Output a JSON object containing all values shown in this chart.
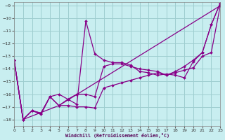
{
  "background_color": "#c8eef0",
  "grid_color": "#9ecdd0",
  "line_color": "#880088",
  "xlim": [
    0,
    23
  ],
  "ylim": [
    -18.5,
    -8.7
  ],
  "yticks": [
    -18,
    -17,
    -16,
    -15,
    -14,
    -13,
    -12,
    -11,
    -10,
    -9
  ],
  "xticks": [
    0,
    1,
    2,
    3,
    4,
    5,
    6,
    7,
    8,
    9,
    10,
    11,
    12,
    13,
    14,
    15,
    16,
    17,
    18,
    19,
    20,
    21,
    22,
    23
  ],
  "xlabel": "Windchill (Refroidissement éolien,°C)",
  "series": [
    {
      "x": [
        0,
        1,
        2,
        3,
        4,
        5,
        6,
        7,
        8,
        9,
        10,
        11,
        12,
        13,
        14,
        15,
        16,
        17,
        18,
        19,
        20,
        21,
        22,
        23
      ],
      "y": [
        -13.3,
        -18.0,
        -17.3,
        -17.5,
        -16.2,
        -16.0,
        -16.4,
        -16.8,
        -10.2,
        -12.8,
        -13.3,
        -13.5,
        -13.5,
        -13.7,
        -14.2,
        -14.3,
        -14.5,
        -14.4,
        -14.5,
        -14.7,
        -13.4,
        -12.7,
        -10.5,
        -8.8
      ]
    },
    {
      "x": [
        0,
        1,
        2,
        3,
        4,
        5,
        23
      ],
      "y": [
        -13.3,
        -18.0,
        -17.3,
        -17.5,
        -16.2,
        -16.9,
        -9.0
      ]
    },
    {
      "x": [
        0,
        1,
        2,
        3,
        4,
        5,
        6,
        7,
        8,
        9,
        10,
        11,
        12,
        13,
        14,
        15,
        16,
        17,
        18,
        19,
        20,
        21,
        22,
        23
      ],
      "y": [
        -13.3,
        -18.0,
        -17.3,
        -17.6,
        -16.2,
        -16.9,
        -16.9,
        -17.0,
        -17.0,
        -17.1,
        -15.5,
        -15.3,
        -15.1,
        -14.9,
        -14.7,
        -14.5,
        -14.3,
        -14.5,
        -14.3,
        -14.1,
        -13.9,
        -13.0,
        -12.7,
        -9.0
      ]
    },
    {
      "x": [
        0,
        1,
        5,
        6,
        7,
        8,
        9,
        10,
        11,
        12,
        13,
        14,
        15,
        16,
        17,
        18,
        19,
        20,
        21,
        22,
        23
      ],
      "y": [
        -13.3,
        -18.0,
        -16.9,
        -16.4,
        -16.0,
        -16.0,
        -16.2,
        -13.8,
        -13.6,
        -13.6,
        -13.8,
        -14.0,
        -14.1,
        -14.2,
        -14.5,
        -14.2,
        -13.8,
        -13.3,
        -12.7,
        -10.5,
        -8.8
      ]
    }
  ]
}
